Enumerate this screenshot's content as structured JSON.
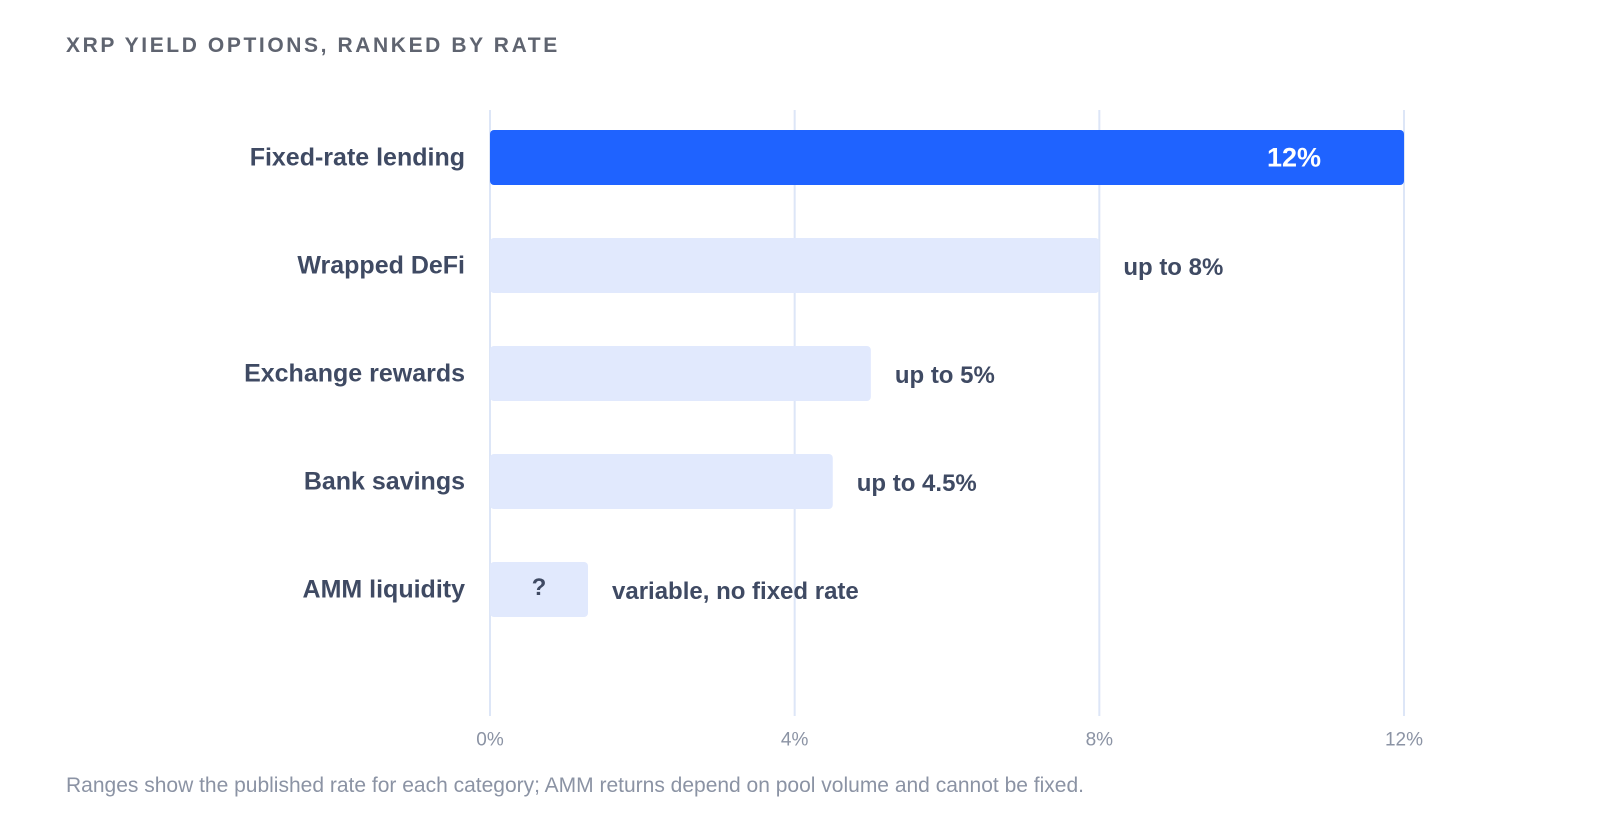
{
  "chart_data": {
    "type": "bar",
    "orientation": "horizontal",
    "title": "XRP YIELD OPTIONS, RANKED BY RATE",
    "categories": [
      "Fixed-rate lending",
      "Wrapped DeFi",
      "Exchange rewards",
      "Bank savings",
      "AMM liquidity"
    ],
    "values": [
      12,
      8,
      5,
      4.5,
      null
    ],
    "value_labels": [
      "12%",
      "up to 8%",
      "up to 5%",
      "up to 4.5%",
      "variable, no fixed rate"
    ],
    "bar_inner_labels": [
      "12%",
      "",
      "",
      "",
      "?"
    ],
    "highlighted": [
      true,
      false,
      false,
      false,
      false
    ],
    "xlim": [
      0,
      12
    ],
    "xticks": [
      0,
      4,
      8,
      12
    ],
    "xtick_labels": [
      "0%",
      "4%",
      "8%",
      "12%"
    ],
    "grid": true,
    "xlabel": "",
    "ylabel": "",
    "footnote": "Ranges show the published rate for each category; AMM returns depend on pool volume and cannot be fixed."
  },
  "colors": {
    "highlight_bar": "#1f63ff",
    "bar": "#e1e9fd",
    "gridline": "#dde6f7",
    "category_text": "#3f4a63",
    "value_text": "#3f4a63",
    "tick_text": "#8b93a4",
    "inner_label_text": "#ffffff"
  }
}
